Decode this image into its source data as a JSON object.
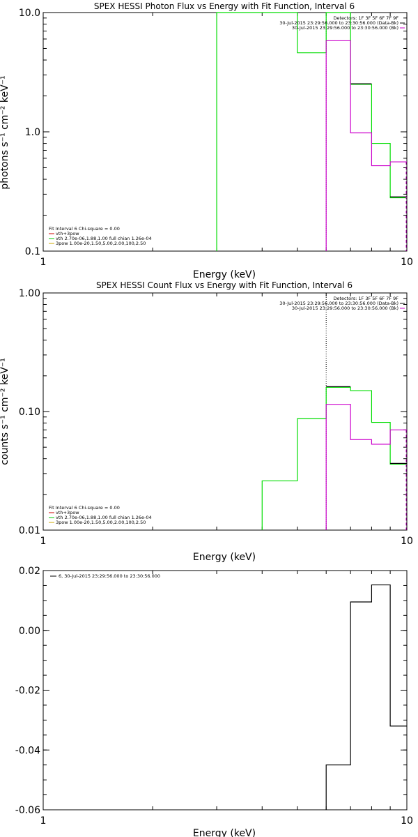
{
  "chart_data": [
    {
      "type": "line",
      "title": "SPEX HESSI Photon Flux vs Energy with Fit Function, Interval 6",
      "xlabel": "Energy (keV)",
      "ylabel": "photons s⁻¹ cm⁻² keV⁻¹",
      "xscale": "log",
      "yscale": "log",
      "xlim": [
        1,
        10
      ],
      "ylim": [
        0.1,
        10
      ],
      "xticks": [
        {
          "v": 1,
          "label": "1"
        },
        {
          "v": 10,
          "label": "10"
        }
      ],
      "yticks": [
        {
          "v": 0.1,
          "label": "0.1"
        },
        {
          "v": 1,
          "label": "1.0"
        },
        {
          "v": 10,
          "label": "10.0"
        }
      ],
      "legend_top": [
        "Detectors: 1F 3F 5F 6F 7F 9F",
        "30-Jul-2015 23:29:56.000 to 23:30:56.000 (Data-Bk)",
        "30-Jul-2015 23:29:56.000 to 23:30:56.000 (Bk)"
      ],
      "legend_top_colors": [
        "",
        "#000000",
        "#cc00cc"
      ],
      "legend_bottom": [
        "Fit Interval 6   Chi-square = 0.00",
        "vth+3pow",
        "vth 2.70e-06,1.88,1.00  full chian 1.26e-04",
        "3pow 1.00e-20,1.50,5.00,2.00,100,2.50"
      ],
      "legend_bottom_colors": [
        "",
        "#cc0000",
        "#00cc00",
        "#ccaa00"
      ],
      "vline": 6.0,
      "series": [
        {
          "color": "#00dd00",
          "edges": [
            3.0,
            5.0,
            6.0,
            7.0,
            8.0,
            9.0,
            10.0
          ],
          "values": [
            15.0,
            4.6,
            18.0,
            2.5,
            0.8,
            0.28
          ],
          "leftDrop": true
        },
        {
          "color": "#000000",
          "edges": [
            7.0,
            8.0
          ],
          "values": [
            2.53
          ]
        },
        {
          "color": "#000000",
          "edges": [
            9.0,
            10.0
          ],
          "values": [
            0.285
          ]
        },
        {
          "color": "#cc00cc",
          "edges": [
            6.0,
            7.0,
            8.0,
            9.0,
            10.0
          ],
          "values": [
            5.8,
            0.98,
            0.52,
            0.56
          ],
          "leftDrop": true,
          "dash": true
        }
      ]
    },
    {
      "type": "line",
      "title": "SPEX HESSI Count Flux vs Energy with Fit Function, Interval 6",
      "xlabel": "Energy (keV)",
      "ylabel": "counts s⁻¹ cm⁻² keV⁻¹",
      "xscale": "log",
      "yscale": "log",
      "xlim": [
        1,
        10
      ],
      "ylim": [
        0.01,
        1
      ],
      "xticks": [
        {
          "v": 1,
          "label": "1"
        },
        {
          "v": 10,
          "label": "10"
        }
      ],
      "yticks": [
        {
          "v": 0.01,
          "label": "0.01"
        },
        {
          "v": 0.1,
          "label": "0.10"
        },
        {
          "v": 1,
          "label": "1.00"
        }
      ],
      "legend_top": [
        "Detectors: 1F 3F 5F 6F 7F 9F",
        "30-Jul-2015 23:29:56.000 to 23:30:56.000 (Data-Bk)",
        "30-Jul-2015 23:29:56.000 to 23:30:56.000 (Bk)"
      ],
      "legend_top_colors": [
        "",
        "#000000",
        "#cc00cc"
      ],
      "legend_bottom": [
        "Fit Interval 6   Chi-square = 0.00",
        "vth+3pow",
        "vth 2.70e-06,1.88,1.00  full chian 1.26e-04",
        "3pow 1.00e-20,1.50,5.00,2.00,100,2.50"
      ],
      "legend_bottom_colors": [
        "",
        "#cc0000",
        "#00cc00",
        "#ccaa00"
      ],
      "vline": 6.0,
      "series": [
        {
          "color": "#00dd00",
          "edges": [
            4.0,
            5.0,
            6.0,
            7.0,
            8.0,
            9.0,
            10.0
          ],
          "values": [
            0.026,
            0.087,
            0.16,
            0.15,
            0.081,
            0.036
          ],
          "leftDrop": true
        },
        {
          "color": "#000000",
          "edges": [
            6.0,
            7.0
          ],
          "values": [
            0.162
          ]
        },
        {
          "color": "#000000",
          "edges": [
            9.0,
            10.0
          ],
          "values": [
            0.0365
          ]
        },
        {
          "color": "#cc00cc",
          "edges": [
            6.0,
            7.0,
            8.0,
            9.0,
            10.0
          ],
          "values": [
            0.115,
            0.058,
            0.053,
            0.07
          ],
          "leftDrop": true,
          "dash": true
        }
      ]
    },
    {
      "type": "line",
      "title": "",
      "xlabel": "Energy (keV)",
      "ylabel": "",
      "xscale": "log",
      "yscale": "linear",
      "xlim": [
        1,
        10
      ],
      "ylim": [
        -0.06,
        0.02
      ],
      "xticks": [
        {
          "v": 1,
          "label": "1"
        },
        {
          "v": 10,
          "label": "10"
        }
      ],
      "yticks": [
        {
          "v": -0.06,
          "label": "-0.06"
        },
        {
          "v": -0.04,
          "label": "-0.04"
        },
        {
          "v": -0.02,
          "label": "-0.02"
        },
        {
          "v": 0,
          "label": "0.00"
        },
        {
          "v": 0.02,
          "label": "0.02"
        }
      ],
      "legend_top": [
        "6, 30-Jul-2015 23:29:56.000 to 23:30:56.000"
      ],
      "legend_top_colors": [
        "#000000"
      ],
      "legend_bottom": [],
      "legend_bottom_colors": [],
      "series": [
        {
          "color": "#000000",
          "edges": [
            6.0,
            7.0,
            8.0,
            9.0,
            10.0
          ],
          "values": [
            -0.045,
            0.0095,
            0.0152,
            -0.032
          ],
          "leftDrop": true
        }
      ]
    }
  ]
}
